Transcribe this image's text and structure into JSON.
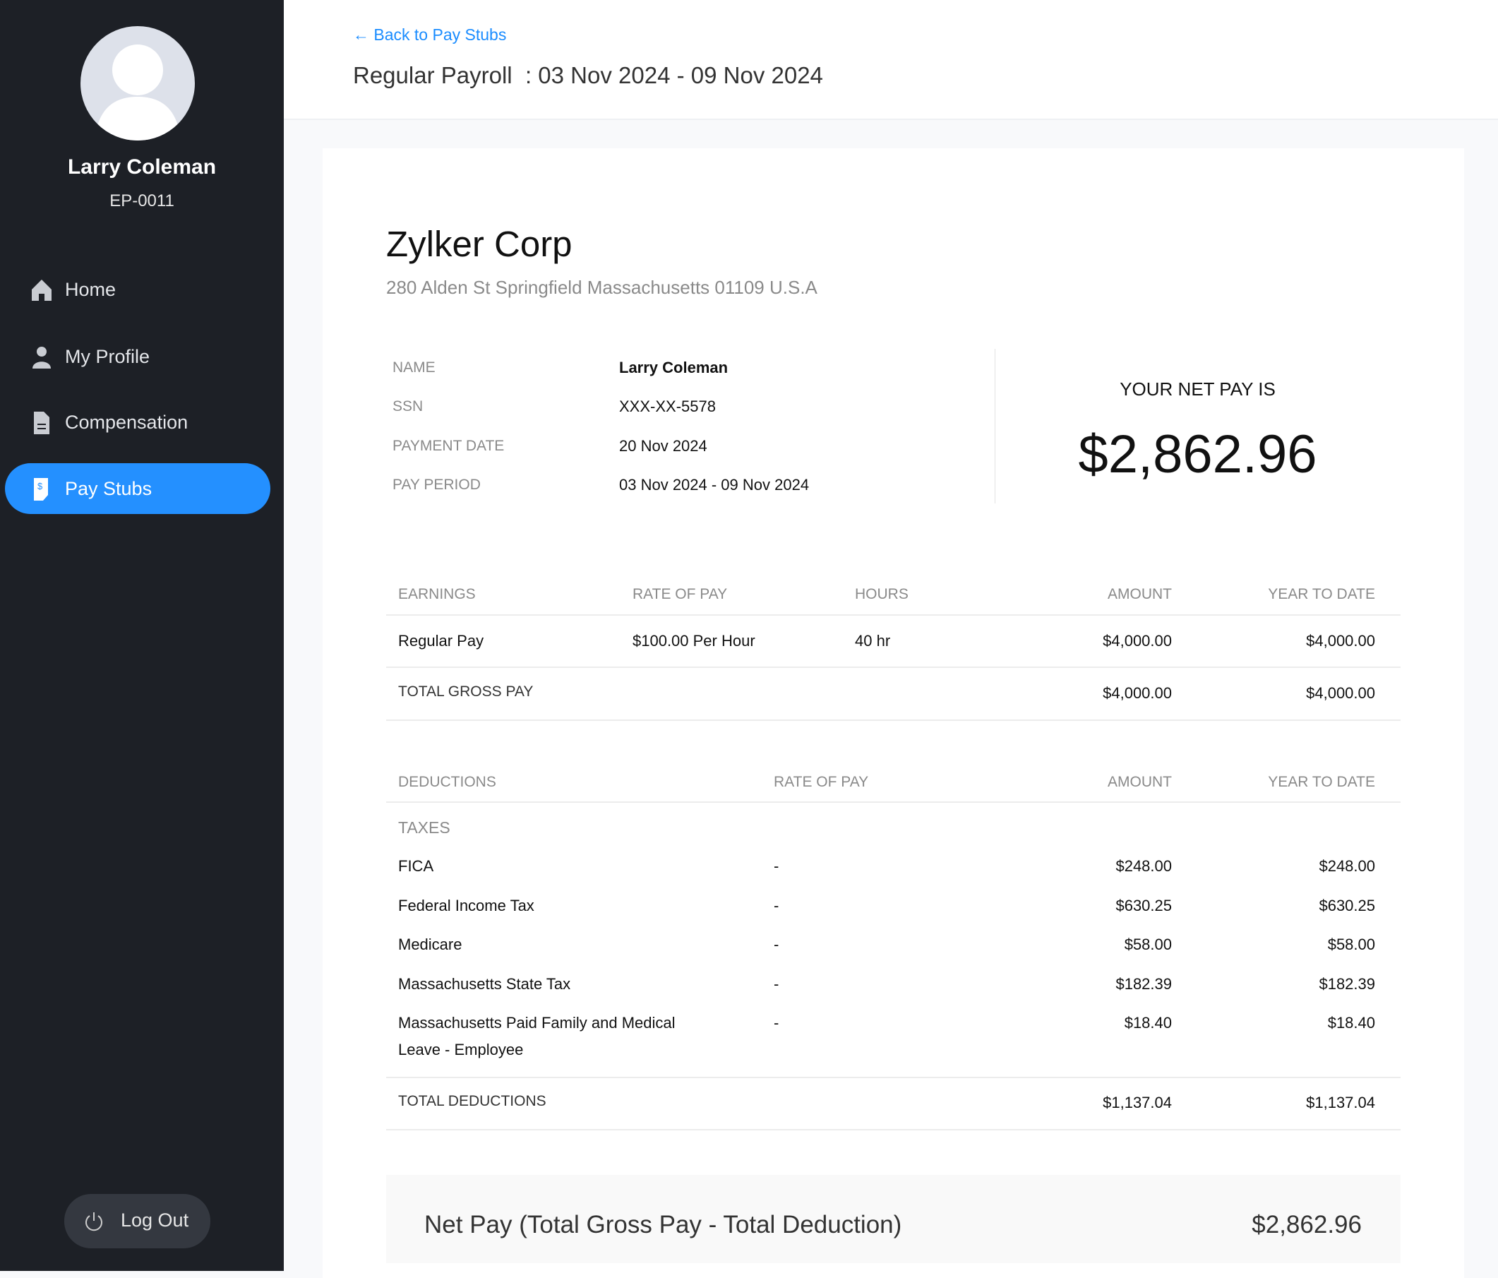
{
  "sidebar": {
    "user_name": "Larry Coleman",
    "employee_id": "EP-0011",
    "items": [
      {
        "label": "Home",
        "icon": "home-icon"
      },
      {
        "label": "My Profile",
        "icon": "user-icon"
      },
      {
        "label": "Compensation",
        "icon": "document-icon"
      },
      {
        "label": "Pay Stubs",
        "icon": "pay-stub-icon",
        "active": true
      }
    ],
    "logout_label": "Log Out"
  },
  "header": {
    "back_label": "Back to Pay Stubs",
    "title_prefix": "Regular Payroll",
    "title_sep": ":",
    "title_period": "03 Nov 2024 - 09 Nov 2024"
  },
  "company": {
    "name": "Zylker Corp",
    "address": "280 Alden St Springfield Massachusetts 01109 U.S.A"
  },
  "employee": [
    {
      "label": "NAME",
      "value": "Larry Coleman"
    },
    {
      "label": "SSN",
      "value": "XXX-XX-5578"
    },
    {
      "label": "PAYMENT DATE",
      "value": "20 Nov 2024"
    },
    {
      "label": "PAY PERIOD",
      "value": "03 Nov 2024 - 09 Nov 2024"
    }
  ],
  "net_pay": {
    "label": "YOUR NET PAY IS",
    "amount": "$2,862.96"
  },
  "earnings": {
    "headers": [
      "EARNINGS",
      "RATE OF PAY",
      "HOURS",
      "AMOUNT",
      "YEAR TO DATE"
    ],
    "rows": [
      [
        "Regular Pay",
        "$100.00 Per Hour",
        "40 hr",
        "$4,000.00",
        "$4,000.00"
      ]
    ],
    "total": {
      "label": "TOTAL GROSS PAY",
      "amount": "$4,000.00",
      "ytd": "$4,000.00"
    }
  },
  "deductions": {
    "headers": [
      "DEDUCTIONS",
      "RATE OF PAY",
      "AMOUNT",
      "YEAR TO DATE"
    ],
    "group": "TAXES",
    "rows": [
      [
        "FICA",
        "-",
        "$248.00",
        "$248.00"
      ],
      [
        "Federal Income Tax",
        "-",
        "$630.25",
        "$630.25"
      ],
      [
        "Medicare",
        "-",
        "$58.00",
        "$58.00"
      ],
      [
        "Massachusetts State Tax",
        "-",
        "$182.39",
        "$182.39"
      ],
      [
        "Massachusetts Paid Family and Medical",
        "-",
        "$18.40",
        "$18.40"
      ]
    ],
    "row5_line2": "Leave - Employee",
    "total": {
      "label": "TOTAL DEDUCTIONS",
      "amount": "$1,137.04",
      "ytd": "$1,137.04"
    }
  },
  "summary": {
    "label": "Net Pay (Total Gross Pay - Total Deduction)",
    "amount": "$2,862.96"
  },
  "colors": {
    "sidebar": "#1d2026",
    "accent": "#2490ff",
    "link": "#1a8cff"
  }
}
